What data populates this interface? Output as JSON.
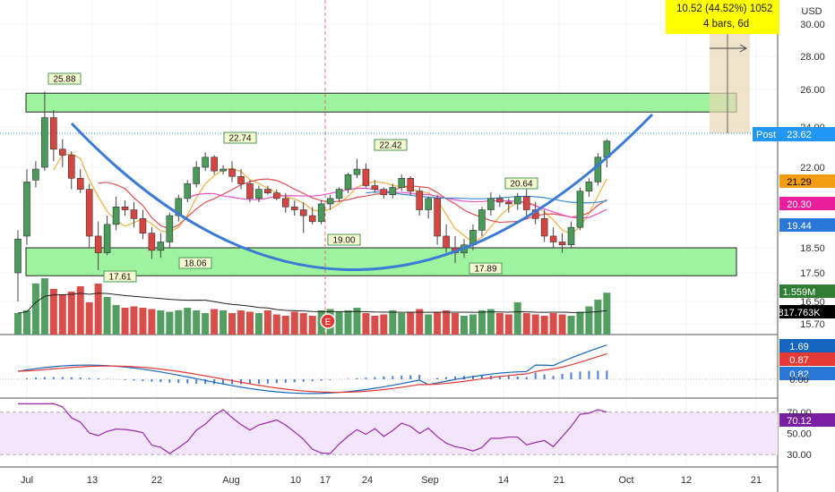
{
  "currency": "USD",
  "measure": {
    "line1": "10.52 (44.52%) 1052",
    "line2": "4 bars, 6d"
  },
  "earnings_marker": "E",
  "post": {
    "label": "Post",
    "value": "23.62"
  },
  "right_labels": [
    {
      "value": "21.29",
      "bg": "#f39c12",
      "fg": "#000000"
    },
    {
      "value": "20.30",
      "bg": "#e91e9c",
      "fg": "#ffffff"
    },
    {
      "value": "19.44",
      "bg": "#2978d8",
      "fg": "#ffffff"
    },
    {
      "value": "1.559M",
      "bg": "#2e7d32",
      "fg": "#ffffff"
    },
    {
      "value": "817.763K",
      "bg": "#000000",
      "fg": "#ffffff"
    },
    {
      "value": "1.69",
      "bg": "#1565c0",
      "fg": "#ffffff"
    },
    {
      "value": "0.87",
      "bg": "#e53935",
      "fg": "#ffffff"
    },
    {
      "value": "0.82",
      "bg": "#2978d8",
      "fg": "#ffffff"
    },
    {
      "value": "70.12",
      "bg": "#7b1fa2",
      "fg": "#ffffff"
    }
  ],
  "price_ticks": [
    "30.00",
    "28.00",
    "26.00",
    "24.00",
    "22.00",
    "20.00",
    "18.50",
    "17.50",
    "16.50",
    "15.70"
  ],
  "macd_ticks": [
    "0.00"
  ],
  "rsi_ticks": [
    "70.00",
    "50.00",
    "30.00"
  ],
  "x_ticks": [
    "Jul",
    "13",
    "22",
    "Aug",
    "10",
    "17",
    "24",
    "Sep",
    "14",
    "21",
    "Oct",
    "12",
    "21"
  ],
  "annotations": [
    "25.88",
    "22.74",
    "22.42",
    "20.64",
    "19.00",
    "18.06",
    "17.61",
    "17.89"
  ],
  "colors": {
    "up": "#4a9a5a",
    "down": "#d64540",
    "zone_fill": "#8ef08e",
    "curve": "#3a7bd5",
    "sma_orange": "#f0b040",
    "sma_pink": "#e94fc8",
    "sma_red": "#e05050",
    "sma_blue": "#3a8ad5",
    "rsi": "#9c27b0",
    "rsi_band": "#f3e5fb"
  },
  "chart_data": {
    "type": "candlestick",
    "dates": [
      "Jul 1",
      "Jul 2",
      "Jul 6",
      "Jul 7",
      "Jul 8",
      "Jul 9",
      "Jul 10",
      "Jul 13",
      "Jul 14",
      "Jul 15",
      "Jul 16",
      "Jul 17",
      "Jul 20",
      "Jul 21",
      "Jul 22",
      "Jul 23",
      "Jul 24",
      "Jul 27",
      "Jul 28",
      "Jul 29",
      "Jul 30",
      "Jul 31",
      "Aug 3",
      "Aug 4",
      "Aug 5",
      "Aug 6",
      "Aug 7",
      "Aug 10",
      "Aug 11",
      "Aug 12",
      "Aug 13",
      "Aug 14",
      "Aug 17",
      "Aug 18",
      "Aug 19",
      "Aug 20",
      "Aug 21",
      "Aug 24",
      "Aug 25",
      "Aug 26",
      "Aug 27",
      "Aug 28",
      "Aug 31",
      "Sep 1",
      "Sep 2",
      "Sep 3",
      "Sep 4",
      "Sep 8",
      "Sep 9",
      "Sep 10",
      "Sep 11",
      "Sep 14",
      "Sep 15",
      "Sep 16",
      "Sep 17",
      "Sep 18",
      "Sep 21",
      "Sep 22",
      "Sep 23",
      "Sep 24",
      "Sep 25",
      "Sep 28",
      "Sep 29",
      "Sep 30",
      "Oct 1",
      "Oct 2",
      "Oct 5"
    ],
    "ohlc": [
      [
        17.5,
        19.1,
        16.5,
        18.8
      ],
      [
        18.9,
        21.9,
        18.6,
        21.2
      ],
      [
        21.3,
        22.3,
        20.9,
        21.9
      ],
      [
        22.0,
        25.88,
        21.8,
        24.5
      ],
      [
        24.5,
        24.9,
        22.3,
        22.9
      ],
      [
        22.9,
        23.4,
        22.0,
        22.6
      ],
      [
        22.6,
        22.8,
        20.8,
        21.4
      ],
      [
        21.4,
        21.9,
        20.6,
        20.8
      ],
      [
        20.8,
        21.1,
        18.5,
        18.9
      ],
      [
        18.9,
        19.4,
        17.61,
        18.3
      ],
      [
        18.3,
        19.6,
        18.2,
        19.3
      ],
      [
        19.3,
        20.4,
        19.1,
        19.9
      ],
      [
        19.9,
        20.2,
        19.6,
        19.8
      ],
      [
        19.8,
        20.1,
        19.2,
        19.5
      ],
      [
        19.5,
        19.8,
        18.8,
        19.0
      ],
      [
        19.0,
        19.2,
        18.06,
        18.4
      ],
      [
        18.4,
        19.0,
        18.1,
        18.7
      ],
      [
        18.7,
        19.7,
        18.5,
        19.6
      ],
      [
        19.6,
        20.5,
        19.4,
        20.3
      ],
      [
        20.3,
        21.3,
        20.1,
        21.1
      ],
      [
        21.1,
        22.3,
        20.9,
        22.0
      ],
      [
        22.0,
        22.74,
        21.8,
        22.5
      ],
      [
        22.5,
        22.6,
        21.6,
        21.8
      ],
      [
        21.8,
        22.1,
        21.6,
        21.9
      ],
      [
        21.9,
        22.3,
        21.2,
        21.5
      ],
      [
        21.5,
        21.9,
        20.8,
        21.1
      ],
      [
        21.1,
        21.3,
        20.1,
        20.3
      ],
      [
        20.3,
        21.0,
        20.1,
        20.8
      ],
      [
        20.8,
        21.0,
        20.5,
        20.6
      ],
      [
        20.6,
        20.8,
        20.2,
        20.3
      ],
      [
        20.3,
        20.6,
        19.7,
        19.9
      ],
      [
        19.9,
        20.2,
        19.6,
        19.8
      ],
      [
        19.8,
        20.1,
        19.0,
        19.6
      ],
      [
        19.6,
        19.9,
        19.3,
        19.4
      ],
      [
        19.4,
        20.2,
        19.3,
        20.0
      ],
      [
        20.0,
        20.5,
        19.8,
        20.3
      ],
      [
        20.3,
        20.9,
        20.1,
        20.8
      ],
      [
        20.8,
        21.7,
        20.6,
        21.6
      ],
      [
        21.6,
        22.42,
        21.4,
        21.9
      ],
      [
        21.9,
        22.2,
        20.9,
        21.0
      ],
      [
        21.0,
        21.3,
        20.6,
        20.8
      ],
      [
        20.8,
        20.9,
        20.3,
        20.5
      ],
      [
        20.5,
        21.1,
        20.3,
        20.9
      ],
      [
        20.9,
        21.6,
        20.7,
        21.4
      ],
      [
        21.4,
        21.5,
        20.5,
        20.7
      ],
      [
        20.7,
        20.9,
        19.6,
        19.8
      ],
      [
        19.8,
        20.4,
        19.5,
        20.3
      ],
      [
        20.3,
        20.5,
        18.6,
        18.9
      ],
      [
        18.9,
        19.3,
        18.3,
        18.5
      ],
      [
        18.5,
        18.9,
        17.89,
        18.3
      ],
      [
        18.3,
        18.8,
        18.1,
        18.6
      ],
      [
        18.6,
        19.3,
        18.4,
        19.1
      ],
      [
        19.1,
        19.9,
        18.9,
        19.8
      ],
      [
        19.8,
        20.64,
        19.6,
        20.3
      ],
      [
        20.3,
        20.5,
        19.9,
        20.1
      ],
      [
        20.1,
        20.3,
        19.7,
        20.0
      ],
      [
        20.0,
        20.6,
        19.8,
        20.4
      ],
      [
        20.4,
        20.8,
        19.6,
        19.8
      ],
      [
        19.8,
        20.1,
        19.3,
        19.5
      ],
      [
        19.5,
        19.8,
        18.7,
        18.9
      ],
      [
        18.9,
        19.2,
        18.5,
        18.7
      ],
      [
        18.7,
        19.0,
        18.3,
        18.6
      ],
      [
        18.6,
        19.4,
        18.5,
        19.2
      ],
      [
        19.2,
        20.9,
        19.1,
        20.7
      ],
      [
        20.7,
        21.4,
        20.4,
        21.2
      ],
      [
        21.2,
        22.7,
        21.0,
        22.5
      ],
      [
        22.5,
        23.4,
        22.0,
        23.3
      ]
    ],
    "volume_m": [
      0.8,
      0.9,
      1.9,
      2.1,
      1.7,
      1.5,
      1.6,
      1.8,
      1.2,
      1.9,
      1.4,
      1.1,
      1.0,
      1.05,
      1.0,
      0.95,
      0.9,
      0.85,
      0.9,
      1.0,
      0.9,
      0.8,
      0.95,
      0.9,
      0.8,
      0.9,
      0.85,
      0.8,
      0.9,
      0.75,
      0.7,
      0.85,
      0.8,
      0.7,
      0.9,
      0.95,
      0.85,
      0.9,
      1.0,
      0.8,
      0.7,
      0.75,
      0.9,
      0.8,
      0.85,
      0.95,
      0.75,
      0.85,
      0.9,
      0.8,
      0.7,
      0.75,
      0.9,
      0.95,
      0.8,
      0.75,
      1.2,
      0.8,
      0.75,
      0.7,
      0.8,
      0.75,
      0.7,
      0.85,
      1.05,
      1.3,
      1.559
    ],
    "zones": [
      {
        "name": "resistance",
        "from": 24.8,
        "to": 25.8
      },
      {
        "name": "support",
        "from": 17.4,
        "to": 18.5
      }
    ],
    "ylim": [
      15.7,
      30.3
    ],
    "rsi_last": 70.12,
    "macd_last": [
      1.69,
      0.87,
      0.82
    ]
  }
}
